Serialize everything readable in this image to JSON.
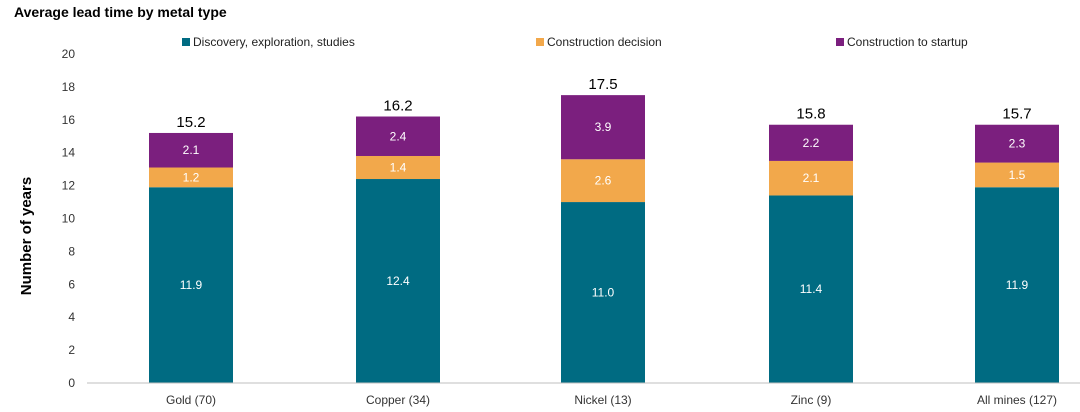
{
  "chart_data": {
    "type": "bar",
    "stacked": true,
    "title": "Average lead time by metal type",
    "xlabel": "",
    "ylabel": "Number of years",
    "ylim": [
      0,
      20
    ],
    "yticks": [
      0,
      2,
      4,
      6,
      8,
      10,
      12,
      14,
      16,
      18,
      20
    ],
    "grid": false,
    "legend_position": "top",
    "categories": [
      "Gold (70)",
      "Copper (34)",
      "Nickel (13)",
      "Zinc (9)",
      "All mines (127)"
    ],
    "series": [
      {
        "name": "Discovery, exploration, studies",
        "color": "#006B82",
        "values": [
          11.9,
          12.4,
          11.0,
          11.4,
          11.9
        ]
      },
      {
        "name": "Construction decision",
        "color": "#F2A84B",
        "values": [
          1.2,
          1.4,
          2.6,
          2.1,
          1.5
        ]
      },
      {
        "name": "Construction to startup",
        "color": "#7B1F7E",
        "values": [
          2.1,
          2.4,
          3.9,
          2.2,
          2.3
        ]
      }
    ],
    "totals": [
      "15.2",
      "16.2",
      "17.5",
      "15.8",
      "15.7"
    ]
  }
}
